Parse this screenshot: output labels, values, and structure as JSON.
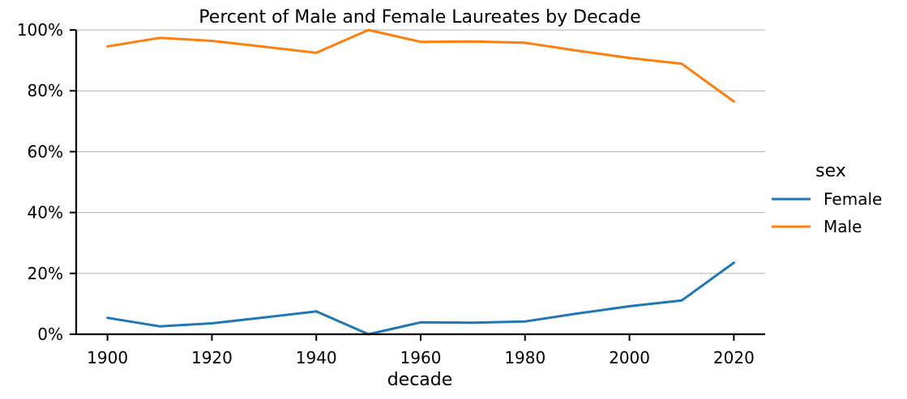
{
  "chart_data": {
    "type": "line",
    "title": "Percent of Male and Female Laureates by Decade",
    "xlabel": "decade",
    "ylabel": "",
    "x": [
      1900,
      1910,
      1920,
      1930,
      1940,
      1950,
      1960,
      1970,
      1980,
      1990,
      2000,
      2010,
      2020
    ],
    "xlim": [
      1894,
      2026
    ],
    "ylim": [
      0,
      1
    ],
    "xticks": [
      1900,
      1920,
      1940,
      1960,
      1980,
      2000,
      2020
    ],
    "xtick_labels": [
      "1900",
      "1920",
      "1940",
      "1960",
      "1980",
      "2000",
      "2020"
    ],
    "yticks": [
      0,
      0.2,
      0.4,
      0.6,
      0.8,
      1.0
    ],
    "ytick_labels": [
      "0%",
      "20%",
      "40%",
      "60%",
      "80%",
      "100%"
    ],
    "grid": "horizontal",
    "legend": {
      "title": "sex",
      "placement": "right"
    },
    "series": [
      {
        "name": "Female",
        "color": "#1f77b4",
        "values": [
          0.054,
          0.026,
          0.036,
          0.055,
          0.075,
          0.0,
          0.039,
          0.038,
          0.042,
          0.068,
          0.092,
          0.111,
          0.235
        ]
      },
      {
        "name": "Male",
        "color": "#ff7f0e",
        "values": [
          0.946,
          0.974,
          0.964,
          0.945,
          0.925,
          1.0,
          0.961,
          0.962,
          0.958,
          0.932,
          0.908,
          0.889,
          0.765
        ]
      }
    ]
  }
}
